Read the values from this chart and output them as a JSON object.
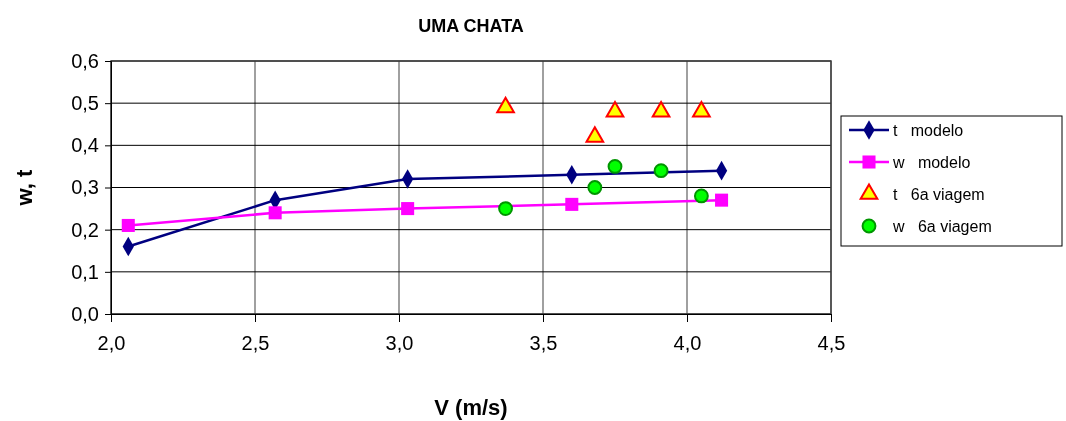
{
  "chart_data": {
    "type": "line",
    "title": "UMA CHATA",
    "xlabel": "V (m/s)",
    "ylabel": "w, t",
    "xlim": [
      2.0,
      4.5
    ],
    "xticks": [
      {
        "value": 2.0,
        "label": "2,0"
      },
      {
        "value": 2.5,
        "label": "2,5"
      },
      {
        "value": 3.0,
        "label": "3,0"
      },
      {
        "value": 3.5,
        "label": "3,5"
      },
      {
        "value": 4.0,
        "label": "4,0"
      },
      {
        "value": 4.5,
        "label": "4,5"
      }
    ],
    "ylim": [
      0,
      0.6
    ],
    "yticks": [
      {
        "value": 0,
        "label": "0,0"
      },
      {
        "value": 0.1,
        "label": "0,1"
      },
      {
        "value": 0.2,
        "label": "0,2"
      },
      {
        "value": 0.3,
        "label": "0,3"
      },
      {
        "value": 0.4,
        "label": "0,4"
      },
      {
        "value": 0.5,
        "label": "0,5"
      },
      {
        "value": 0.6,
        "label": "0,6"
      }
    ],
    "grid": true,
    "legend": "right",
    "series": [
      {
        "name": "t   modelo",
        "marker": "diamond",
        "color": "#000080",
        "x": [
          2.06,
          2.57,
          3.03,
          3.6,
          4.12
        ],
        "values": [
          0.16,
          0.27,
          0.32,
          0.33,
          0.34
        ]
      },
      {
        "name": "w   modelo",
        "marker": "square",
        "color": "#ff00ff",
        "x": [
          2.06,
          2.57,
          3.03,
          3.6,
          4.12
        ],
        "values": [
          0.21,
          0.24,
          0.25,
          0.26,
          0.27
        ]
      },
      {
        "name": "t   6a viagem",
        "type": "scatter",
        "marker": "triangle",
        "color": "#ff0000",
        "x": [
          3.37,
          3.68,
          3.75,
          3.91,
          4.05
        ],
        "values": [
          0.49,
          0.42,
          0.48,
          0.48,
          0.48
        ]
      },
      {
        "name": "w   6a viagem",
        "type": "scatter",
        "marker": "circle",
        "color": "#00ff00",
        "x": [
          3.37,
          3.68,
          3.75,
          3.91,
          4.05
        ],
        "values": [
          0.25,
          0.3,
          0.35,
          0.34,
          0.28
        ]
      }
    ]
  }
}
